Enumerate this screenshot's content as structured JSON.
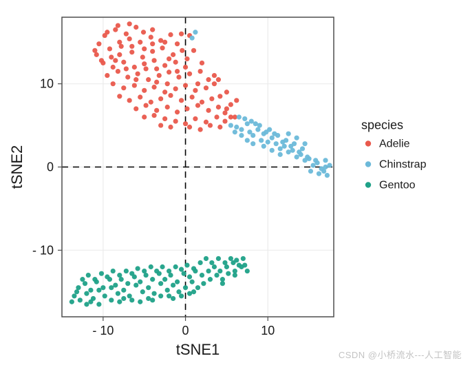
{
  "chart": {
    "type": "scatter",
    "panel_bg": "#ffffff",
    "grid_color": "#ebebeb",
    "axis_line_color": "#4d4d4d",
    "text_color": "#1a1a1a",
    "dashed_ref_color": "#000000",
    "axis_title_fontsize": 22,
    "tick_fontsize": 18,
    "legend_title_fontsize": 18,
    "legend_label_fontsize": 16,
    "point_radius": 3.6,
    "point_alpha": 0.95,
    "xlabel": "tSNE1",
    "ylabel": "tSNE2",
    "xlim": [
      -15,
      18
    ],
    "ylim": [
      -18,
      18
    ],
    "xticks": [
      -10,
      0,
      10
    ],
    "yticks": [
      -10,
      0,
      10
    ],
    "legend": {
      "title": "species",
      "items": [
        {
          "label": "Adelie",
          "color": "#e9594c"
        },
        {
          "label": "Chinstrap",
          "color": "#6cb9d9"
        },
        {
          "label": "Gentoo",
          "color": "#1fa188"
        }
      ]
    },
    "series": [
      {
        "name": "Adelie",
        "color": "#e9594c",
        "points": [
          [
            -8.5,
            16.5
          ],
          [
            -7.2,
            16.0
          ],
          [
            -6.0,
            16.8
          ],
          [
            -5.1,
            16.2
          ],
          [
            -4.0,
            16.5
          ],
          [
            -9.8,
            15.8
          ],
          [
            -8.0,
            15.0
          ],
          [
            -6.8,
            15.4
          ],
          [
            -5.5,
            15.0
          ],
          [
            -4.2,
            15.6
          ],
          [
            -3.0,
            15.2
          ],
          [
            -1.8,
            15.9
          ],
          [
            -10.5,
            14.8
          ],
          [
            -9.2,
            14.2
          ],
          [
            -8.0,
            13.5
          ],
          [
            -6.5,
            13.8
          ],
          [
            -5.2,
            13.2
          ],
          [
            -4.0,
            13.9
          ],
          [
            -2.8,
            14.3
          ],
          [
            -1.5,
            13.5
          ],
          [
            -0.4,
            14.0
          ],
          [
            0.5,
            15.8
          ],
          [
            -10.0,
            12.5
          ],
          [
            -8.8,
            12.0
          ],
          [
            -7.5,
            12.6
          ],
          [
            -6.2,
            12.0
          ],
          [
            -5.0,
            12.4
          ],
          [
            -3.8,
            12.8
          ],
          [
            -2.5,
            12.2
          ],
          [
            -1.2,
            12.6
          ],
          [
            0.0,
            12.0
          ],
          [
            -9.5,
            11.0
          ],
          [
            -8.2,
            11.5
          ],
          [
            -7.0,
            10.8
          ],
          [
            -5.8,
            11.2
          ],
          [
            -4.5,
            10.5
          ],
          [
            -3.2,
            11.0
          ],
          [
            -2.0,
            11.4
          ],
          [
            -0.8,
            10.8
          ],
          [
            0.5,
            11.2
          ],
          [
            1.8,
            11.5
          ],
          [
            -8.8,
            10.0
          ],
          [
            -7.5,
            9.5
          ],
          [
            -6.2,
            9.8
          ],
          [
            -5.0,
            9.2
          ],
          [
            -3.8,
            9.6
          ],
          [
            -2.5,
            9.0
          ],
          [
            -1.2,
            9.4
          ],
          [
            0.0,
            9.8
          ],
          [
            1.2,
            9.2
          ],
          [
            2.5,
            9.5
          ],
          [
            3.5,
            10.0
          ],
          [
            -8.0,
            8.5
          ],
          [
            -6.8,
            8.0
          ],
          [
            -5.5,
            8.4
          ],
          [
            -4.2,
            7.8
          ],
          [
            -3.0,
            8.2
          ],
          [
            -1.8,
            8.6
          ],
          [
            -0.5,
            8.0
          ],
          [
            0.8,
            8.4
          ],
          [
            2.0,
            7.8
          ],
          [
            3.2,
            8.2
          ],
          [
            4.2,
            8.5
          ],
          [
            -6.0,
            7.0
          ],
          [
            -4.8,
            7.4
          ],
          [
            -3.5,
            6.8
          ],
          [
            -2.2,
            7.2
          ],
          [
            -1.0,
            6.6
          ],
          [
            0.2,
            7.0
          ],
          [
            1.5,
            7.4
          ],
          [
            2.8,
            6.8
          ],
          [
            4.0,
            7.2
          ],
          [
            5.0,
            7.0
          ],
          [
            -5.0,
            6.0
          ],
          [
            -3.8,
            6.2
          ],
          [
            -2.5,
            5.8
          ],
          [
            -1.2,
            5.5
          ],
          [
            0.0,
            5.2
          ],
          [
            1.2,
            5.8
          ],
          [
            2.5,
            5.4
          ],
          [
            3.8,
            6.0
          ],
          [
            4.8,
            5.5
          ],
          [
            5.5,
            6.0
          ],
          [
            -3.0,
            5.0
          ],
          [
            -1.8,
            4.8
          ],
          [
            0.5,
            4.8
          ],
          [
            1.8,
            4.5
          ],
          [
            3.0,
            5.0
          ],
          [
            4.2,
            4.8
          ],
          [
            -9.0,
            13.2
          ],
          [
            -10.8,
            13.5
          ],
          [
            -7.8,
            14.5
          ],
          [
            -6.5,
            14.5
          ],
          [
            -5.0,
            14.2
          ],
          [
            -3.5,
            11.8
          ],
          [
            -2.0,
            13.0
          ],
          [
            -8.5,
            12.8
          ],
          [
            -7.2,
            11.8
          ],
          [
            -6.0,
            10.5
          ],
          [
            -4.8,
            11.8
          ],
          [
            -3.5,
            10.2
          ],
          [
            -2.2,
            10.0
          ],
          [
            -1.0,
            11.5
          ],
          [
            0.2,
            13.0
          ],
          [
            1.0,
            14.0
          ],
          [
            4.0,
            10.5
          ],
          [
            5.0,
            9.0
          ],
          [
            3.5,
            11.0
          ],
          [
            2.8,
            10.5
          ],
          [
            1.5,
            10.0
          ],
          [
            -4.0,
            14.8
          ],
          [
            -2.5,
            15.0
          ],
          [
            -9.5,
            16.2
          ],
          [
            -8.2,
            17.0
          ],
          [
            -6.8,
            17.2
          ],
          [
            6.0,
            6.0
          ],
          [
            5.5,
            7.5
          ],
          [
            6.2,
            8.0
          ],
          [
            4.8,
            6.5
          ],
          [
            2.0,
            12.5
          ],
          [
            -11.0,
            14.0
          ],
          [
            -10.2,
            12.8
          ],
          [
            -1.0,
            14.8
          ],
          [
            -0.5,
            16.0
          ]
        ]
      },
      {
        "name": "Chinstrap",
        "color": "#6cb9d9",
        "points": [
          [
            0.8,
            15.5
          ],
          [
            1.2,
            16.2
          ],
          [
            5.5,
            5.0
          ],
          [
            6.2,
            4.8
          ],
          [
            6.8,
            4.5
          ],
          [
            7.5,
            5.2
          ],
          [
            7.8,
            4.2
          ],
          [
            8.2,
            3.8
          ],
          [
            8.8,
            4.5
          ],
          [
            9.2,
            3.2
          ],
          [
            9.5,
            4.0
          ],
          [
            10.0,
            3.0
          ],
          [
            10.5,
            3.5
          ],
          [
            11.0,
            2.8
          ],
          [
            11.5,
            2.2
          ],
          [
            12.0,
            2.5
          ],
          [
            12.5,
            1.8
          ],
          [
            13.0,
            2.0
          ],
          [
            13.5,
            1.2
          ],
          [
            14.0,
            1.5
          ],
          [
            14.5,
            0.8
          ],
          [
            15.0,
            1.0
          ],
          [
            15.5,
            0.2
          ],
          [
            16.0,
            0.5
          ],
          [
            16.5,
            -0.2
          ],
          [
            17.0,
            0.0
          ],
          [
            8.0,
            5.5
          ],
          [
            9.0,
            5.0
          ],
          [
            10.2,
            4.5
          ],
          [
            11.2,
            3.8
          ],
          [
            12.2,
            3.2
          ],
          [
            13.2,
            2.8
          ],
          [
            14.2,
            2.2
          ],
          [
            6.5,
            6.0
          ],
          [
            7.2,
            5.8
          ],
          [
            8.5,
            5.2
          ],
          [
            9.8,
            4.2
          ],
          [
            10.8,
            4.0
          ],
          [
            11.8,
            3.0
          ],
          [
            12.8,
            2.5
          ],
          [
            13.8,
            1.8
          ],
          [
            14.8,
            1.2
          ],
          [
            15.8,
            0.8
          ],
          [
            16.8,
            -0.5
          ],
          [
            17.2,
            -1.0
          ],
          [
            6.8,
            3.8
          ],
          [
            7.5,
            3.2
          ],
          [
            8.2,
            2.8
          ],
          [
            15.2,
            -0.5
          ],
          [
            16.2,
            -0.8
          ],
          [
            17.0,
            0.8
          ],
          [
            14.5,
            2.8
          ],
          [
            13.5,
            3.5
          ],
          [
            12.5,
            4.0
          ],
          [
            9.5,
            2.5
          ],
          [
            10.5,
            2.0
          ],
          [
            11.5,
            1.5
          ],
          [
            6.0,
            4.2
          ],
          [
            17.5,
            0.2
          ]
        ]
      },
      {
        "name": "Gentoo",
        "color": "#1fa188",
        "points": [
          [
            -13.5,
            -15.5
          ],
          [
            -12.8,
            -16.0
          ],
          [
            -12.0,
            -15.2
          ],
          [
            -11.2,
            -15.8
          ],
          [
            -10.5,
            -14.8
          ],
          [
            -9.8,
            -15.5
          ],
          [
            -9.0,
            -14.5
          ],
          [
            -8.2,
            -15.2
          ],
          [
            -7.5,
            -14.8
          ],
          [
            -6.8,
            -15.5
          ],
          [
            -6.0,
            -14.2
          ],
          [
            -5.2,
            -15.0
          ],
          [
            -4.5,
            -14.5
          ],
          [
            -3.8,
            -15.2
          ],
          [
            -3.0,
            -14.0
          ],
          [
            -2.2,
            -14.8
          ],
          [
            -1.5,
            -14.2
          ],
          [
            -0.8,
            -15.0
          ],
          [
            0.0,
            -14.5
          ],
          [
            0.8,
            -13.8
          ],
          [
            1.5,
            -14.5
          ],
          [
            2.2,
            -14.0
          ],
          [
            3.0,
            -13.5
          ],
          [
            3.8,
            -13.0
          ],
          [
            4.5,
            -13.5
          ],
          [
            5.2,
            -12.8
          ],
          [
            6.0,
            -12.5
          ],
          [
            6.8,
            -12.0
          ],
          [
            7.5,
            -12.5
          ],
          [
            -13.0,
            -14.5
          ],
          [
            -12.2,
            -14.0
          ],
          [
            -11.5,
            -14.8
          ],
          [
            -10.8,
            -13.8
          ],
          [
            -10.0,
            -14.5
          ],
          [
            -9.2,
            -13.5
          ],
          [
            -8.5,
            -14.2
          ],
          [
            -7.8,
            -13.5
          ],
          [
            -7.0,
            -14.0
          ],
          [
            -6.2,
            -13.2
          ],
          [
            -5.5,
            -13.8
          ],
          [
            -4.8,
            -13.0
          ],
          [
            -4.0,
            -13.5
          ],
          [
            -3.2,
            -12.8
          ],
          [
            -2.5,
            -13.5
          ],
          [
            -1.8,
            -13.0
          ],
          [
            -1.0,
            -13.8
          ],
          [
            -0.2,
            -12.8
          ],
          [
            0.5,
            -13.2
          ],
          [
            1.2,
            -12.5
          ],
          [
            2.0,
            -13.0
          ],
          [
            2.8,
            -12.5
          ],
          [
            3.5,
            -12.0
          ],
          [
            4.2,
            -12.5
          ],
          [
            5.0,
            -12.0
          ],
          [
            5.8,
            -11.5
          ],
          [
            6.5,
            -11.8
          ],
          [
            -12.5,
            -13.5
          ],
          [
            -11.8,
            -13.0
          ],
          [
            -11.0,
            -13.5
          ],
          [
            -10.2,
            -12.8
          ],
          [
            -9.5,
            -13.2
          ],
          [
            -8.8,
            -12.5
          ],
          [
            -8.0,
            -13.0
          ],
          [
            -7.2,
            -12.5
          ],
          [
            -6.5,
            -12.8
          ],
          [
            -5.8,
            -12.2
          ],
          [
            -5.0,
            -12.5
          ],
          [
            -4.2,
            -12.0
          ],
          [
            -3.5,
            -12.5
          ],
          [
            -2.8,
            -12.0
          ],
          [
            -2.0,
            -12.5
          ],
          [
            -1.2,
            -12.0
          ],
          [
            -0.5,
            -12.3
          ],
          [
            0.2,
            -11.8
          ],
          [
            1.0,
            -12.2
          ],
          [
            1.8,
            -11.5
          ],
          [
            -13.8,
            -16.2
          ],
          [
            -13.2,
            -15.0
          ],
          [
            -11.5,
            -16.2
          ],
          [
            -9.0,
            -16.0
          ],
          [
            -6.5,
            -16.0
          ],
          [
            -4.0,
            -16.0
          ],
          [
            -1.5,
            -15.8
          ],
          [
            2.5,
            -11.0
          ],
          [
            3.2,
            -11.5
          ],
          [
            4.0,
            -11.0
          ],
          [
            4.8,
            -11.5
          ],
          [
            5.5,
            -11.0
          ],
          [
            6.2,
            -11.2
          ],
          [
            7.0,
            -11.0
          ],
          [
            -10.5,
            -16.5
          ],
          [
            -8.0,
            -16.2
          ],
          [
            -5.5,
            -16.2
          ],
          [
            -3.0,
            -15.5
          ],
          [
            -0.5,
            -15.5
          ],
          [
            1.0,
            -15.0
          ],
          [
            -12.0,
            -16.5
          ],
          [
            -7.5,
            -15.8
          ],
          [
            -4.5,
            -15.8
          ],
          [
            -2.0,
            -15.5
          ],
          [
            0.5,
            -15.2
          ],
          [
            7.2,
            -11.8
          ],
          [
            6.0,
            -13.0
          ],
          [
            4.5,
            -14.0
          ]
        ]
      }
    ]
  },
  "watermark": "CSDN @小桥流水---人工智能"
}
